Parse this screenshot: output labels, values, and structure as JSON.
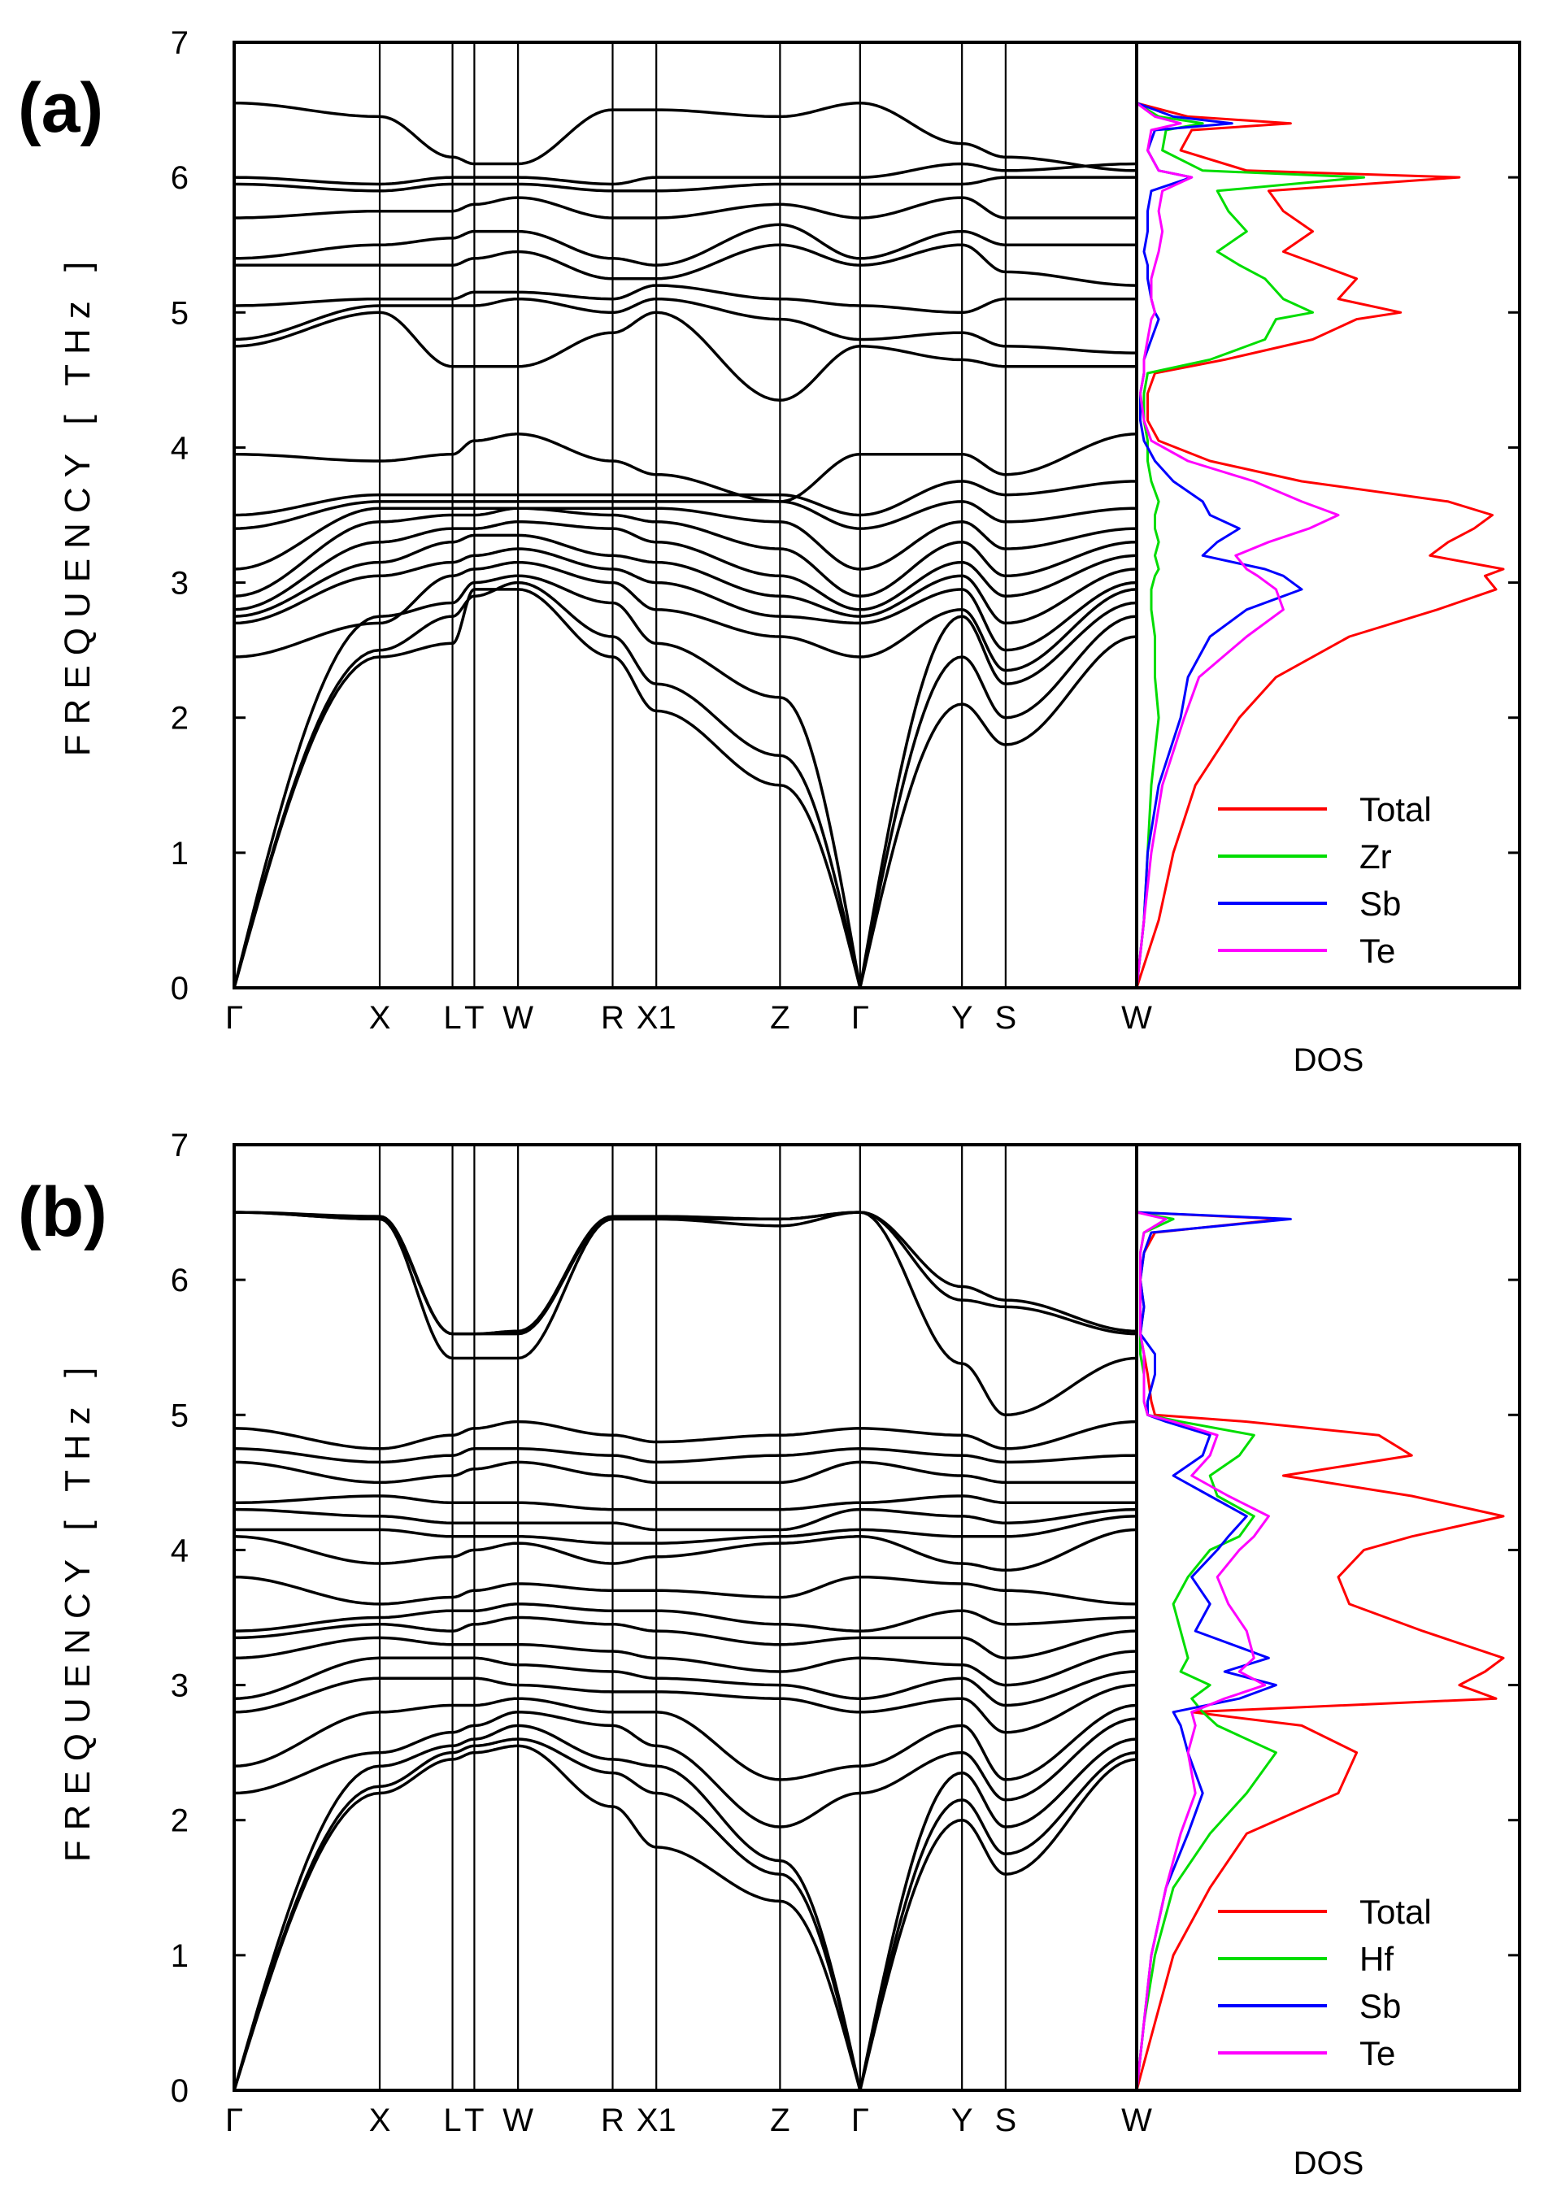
{
  "chart_data": [
    {
      "type": "line",
      "panel_label": "(a)",
      "ylabel": "FREQUENCY [ THz ]",
      "ylim": [
        0,
        7
      ],
      "yticks": [
        "0",
        "1",
        "2",
        "3",
        "4",
        "5",
        "6",
        "7"
      ],
      "dos_label": "DOS",
      "kpath_labels": [
        "Γ",
        "X",
        "L",
        "T",
        "W",
        "R",
        "X1",
        "Z",
        "Γ",
        "Y",
        "S",
        "W"
      ],
      "kpath_positions": [
        0,
        1,
        1.5,
        1.65,
        1.95,
        2.6,
        2.9,
        3.75,
        4.3,
        5.0,
        5.3,
        6.2
      ],
      "band_frequencies_at_kpoints": [
        [
          0,
          2.45,
          2.55,
          2.95,
          2.95,
          2.45,
          2.05,
          1.5,
          0,
          2.1,
          1.8,
          2.6
        ],
        [
          0,
          2.5,
          2.75,
          2.9,
          3.0,
          2.6,
          2.25,
          1.72,
          0,
          2.45,
          2.0,
          2.75
        ],
        [
          0,
          2.75,
          2.85,
          3.0,
          3.05,
          2.85,
          2.55,
          2.15,
          0,
          2.75,
          2.25,
          2.85
        ],
        [
          2.45,
          2.7,
          3.05,
          3.1,
          3.15,
          3.0,
          2.8,
          2.6,
          2.45,
          2.8,
          2.35,
          2.95
        ],
        [
          2.7,
          3.05,
          3.15,
          3.2,
          3.25,
          3.1,
          3.0,
          2.75,
          2.7,
          2.95,
          2.5,
          3.0
        ],
        [
          2.75,
          3.15,
          3.3,
          3.35,
          3.35,
          3.2,
          3.15,
          2.9,
          2.75,
          3.05,
          2.7,
          3.1
        ],
        [
          2.8,
          3.3,
          3.4,
          3.4,
          3.45,
          3.4,
          3.3,
          3.05,
          2.8,
          3.15,
          2.9,
          3.2
        ],
        [
          2.9,
          3.45,
          3.5,
          3.5,
          3.55,
          3.5,
          3.45,
          3.25,
          2.9,
          3.3,
          3.05,
          3.3
        ],
        [
          3.1,
          3.55,
          3.55,
          3.55,
          3.55,
          3.55,
          3.55,
          3.45,
          3.1,
          3.45,
          3.25,
          3.4
        ],
        [
          3.4,
          3.6,
          3.6,
          3.6,
          3.6,
          3.6,
          3.6,
          3.6,
          3.4,
          3.6,
          3.45,
          3.55
        ],
        [
          3.5,
          3.65,
          3.65,
          3.65,
          3.65,
          3.65,
          3.65,
          3.65,
          3.5,
          3.75,
          3.65,
          3.75
        ],
        [
          3.95,
          3.9,
          3.95,
          4.05,
          4.1,
          3.9,
          3.8,
          3.6,
          3.95,
          3.95,
          3.8,
          4.1
        ],
        [
          4.75,
          5.0,
          4.6,
          4.6,
          4.6,
          4.85,
          5.0,
          4.35,
          4.75,
          4.65,
          4.6,
          4.6
        ],
        [
          4.8,
          5.05,
          5.05,
          5.05,
          5.1,
          5.0,
          5.1,
          4.95,
          4.8,
          4.85,
          4.75,
          4.7
        ],
        [
          5.05,
          5.1,
          5.1,
          5.15,
          5.15,
          5.1,
          5.2,
          5.1,
          5.05,
          5.0,
          5.1,
          5.1
        ],
        [
          5.35,
          5.35,
          5.35,
          5.4,
          5.45,
          5.25,
          5.25,
          5.5,
          5.35,
          5.5,
          5.3,
          5.2
        ],
        [
          5.4,
          5.5,
          5.55,
          5.6,
          5.6,
          5.4,
          5.35,
          5.65,
          5.4,
          5.6,
          5.5,
          5.5
        ],
        [
          5.7,
          5.75,
          5.75,
          5.8,
          5.85,
          5.7,
          5.7,
          5.8,
          5.7,
          5.85,
          5.7,
          5.7
        ],
        [
          5.95,
          5.9,
          5.95,
          5.95,
          5.95,
          5.9,
          5.9,
          5.95,
          5.95,
          5.95,
          6.0,
          6.0
        ],
        [
          6.0,
          5.95,
          6.0,
          6.0,
          6.0,
          5.95,
          6.0,
          6.0,
          6.0,
          6.1,
          6.05,
          6.1
        ],
        [
          6.55,
          6.45,
          6.15,
          6.1,
          6.1,
          6.5,
          6.5,
          6.45,
          6.55,
          6.25,
          6.15,
          6.05
        ]
      ],
      "dos": {
        "x_range": [
          0,
          1
        ],
        "freq": [
          0,
          0.5,
          1.0,
          1.5,
          2.0,
          2.3,
          2.6,
          2.8,
          2.95,
          3.05,
          3.1,
          3.2,
          3.3,
          3.4,
          3.5,
          3.6,
          3.75,
          3.9,
          4.05,
          4.2,
          4.4,
          4.55,
          4.65,
          4.8,
          4.95,
          5.0,
          5.1,
          5.25,
          5.35,
          5.45,
          5.6,
          5.75,
          5.9,
          6.0,
          6.05,
          6.2,
          6.35,
          6.4,
          6.45,
          6.55
        ],
        "series": [
          {
            "name": "Total",
            "color": "#ff0000",
            "values": [
              0,
              0.06,
              0.1,
              0.16,
              0.28,
              0.38,
              0.58,
              0.82,
              0.98,
              0.95,
              1.0,
              0.8,
              0.85,
              0.92,
              0.97,
              0.85,
              0.45,
              0.2,
              0.06,
              0.03,
              0.03,
              0.05,
              0.24,
              0.48,
              0.6,
              0.72,
              0.55,
              0.6,
              0.5,
              0.4,
              0.48,
              0.4,
              0.36,
              0.88,
              0.3,
              0.12,
              0.15,
              0.42,
              0.14,
              0
            ]
          },
          {
            "name": "Zr",
            "color": "#00dd00",
            "values": [
              0,
              0.02,
              0.03,
              0.04,
              0.06,
              0.05,
              0.05,
              0.04,
              0.04,
              0.05,
              0.06,
              0.05,
              0.06,
              0.05,
              0.05,
              0.06,
              0.04,
              0.03,
              0.03,
              0.02,
              0.02,
              0.03,
              0.2,
              0.35,
              0.38,
              0.48,
              0.4,
              0.35,
              0.28,
              0.22,
              0.3,
              0.25,
              0.22,
              0.62,
              0.18,
              0.07,
              0.08,
              0.18,
              0.06,
              0
            ]
          },
          {
            "name": "Sb",
            "color": "#0000ff",
            "values": [
              0,
              0.02,
              0.03,
              0.06,
              0.12,
              0.14,
              0.2,
              0.3,
              0.45,
              0.4,
              0.35,
              0.18,
              0.22,
              0.28,
              0.2,
              0.18,
              0.1,
              0.05,
              0.02,
              0.01,
              0.01,
              0.02,
              0.02,
              0.04,
              0.06,
              0.05,
              0.04,
              0.03,
              0.03,
              0.02,
              0.03,
              0.03,
              0.04,
              0.15,
              0.06,
              0.03,
              0.05,
              0.26,
              0.1,
              0
            ]
          },
          {
            "name": "Te",
            "color": "#ff00ff",
            "values": [
              0,
              0.02,
              0.04,
              0.07,
              0.13,
              0.17,
              0.3,
              0.4,
              0.38,
              0.33,
              0.3,
              0.27,
              0.36,
              0.47,
              0.55,
              0.45,
              0.32,
              0.14,
              0.04,
              0.02,
              0.01,
              0.02,
              0.02,
              0.03,
              0.04,
              0.05,
              0.04,
              0.04,
              0.05,
              0.06,
              0.07,
              0.06,
              0.07,
              0.15,
              0.06,
              0.03,
              0.04,
              0.12,
              0.05,
              0
            ]
          }
        ]
      },
      "legend": [
        "Total",
        "Zr",
        "Sb",
        "Te"
      ]
    },
    {
      "type": "line",
      "panel_label": "(b)",
      "ylabel": "FREQUENCY [ THz ]",
      "ylim": [
        0,
        7
      ],
      "yticks": [
        "0",
        "1",
        "2",
        "3",
        "4",
        "5",
        "6",
        "7"
      ],
      "dos_label": "DOS",
      "kpath_labels": [
        "Γ",
        "X",
        "L",
        "T",
        "W",
        "R",
        "X1",
        "Z",
        "Γ",
        "Y",
        "S",
        "W"
      ],
      "kpath_positions": [
        0,
        1,
        1.5,
        1.65,
        1.95,
        2.6,
        2.9,
        3.75,
        4.3,
        5.0,
        5.3,
        6.2
      ],
      "band_frequencies_at_kpoints": [
        [
          0,
          2.2,
          2.45,
          2.5,
          2.55,
          2.1,
          1.8,
          1.4,
          0,
          2.0,
          1.6,
          2.45
        ],
        [
          0,
          2.25,
          2.5,
          2.55,
          2.6,
          2.35,
          2.2,
          1.6,
          0,
          2.15,
          1.75,
          2.5
        ],
        [
          0,
          2.4,
          2.55,
          2.6,
          2.7,
          2.45,
          2.4,
          1.7,
          0,
          2.35,
          1.95,
          2.6
        ],
        [
          2.2,
          2.5,
          2.65,
          2.7,
          2.8,
          2.7,
          2.55,
          1.95,
          2.2,
          2.5,
          2.15,
          2.75
        ],
        [
          2.4,
          2.8,
          2.85,
          2.85,
          2.9,
          2.8,
          2.8,
          2.3,
          2.4,
          2.7,
          2.3,
          2.85
        ],
        [
          2.8,
          3.05,
          3.05,
          3.05,
          3.0,
          2.95,
          2.95,
          2.9,
          2.8,
          2.9,
          2.65,
          3.0
        ],
        [
          2.9,
          3.2,
          3.2,
          3.2,
          3.15,
          3.1,
          3.05,
          3.0,
          2.9,
          3.05,
          2.85,
          3.1
        ],
        [
          3.2,
          3.35,
          3.3,
          3.3,
          3.3,
          3.25,
          3.2,
          3.1,
          3.2,
          3.15,
          3.0,
          3.25
        ],
        [
          3.35,
          3.45,
          3.4,
          3.45,
          3.5,
          3.45,
          3.4,
          3.3,
          3.35,
          3.35,
          3.2,
          3.4
        ],
        [
          3.4,
          3.5,
          3.55,
          3.55,
          3.6,
          3.55,
          3.55,
          3.45,
          3.4,
          3.55,
          3.45,
          3.5
        ],
        [
          3.8,
          3.6,
          3.65,
          3.7,
          3.75,
          3.7,
          3.7,
          3.65,
          3.8,
          3.75,
          3.7,
          3.6
        ],
        [
          4.1,
          3.9,
          3.95,
          4.0,
          4.05,
          3.9,
          3.95,
          4.05,
          4.1,
          3.9,
          3.85,
          4.15
        ],
        [
          4.15,
          4.15,
          4.1,
          4.1,
          4.1,
          4.05,
          4.05,
          4.1,
          4.15,
          4.1,
          4.1,
          4.25
        ],
        [
          4.3,
          4.25,
          4.2,
          4.2,
          4.2,
          4.2,
          4.15,
          4.15,
          4.3,
          4.25,
          4.2,
          4.3
        ],
        [
          4.35,
          4.4,
          4.35,
          4.35,
          4.35,
          4.3,
          4.3,
          4.3,
          4.35,
          4.4,
          4.35,
          4.35
        ],
        [
          4.65,
          4.5,
          4.55,
          4.6,
          4.65,
          4.55,
          4.5,
          4.5,
          4.65,
          4.55,
          4.5,
          4.5
        ],
        [
          4.75,
          4.65,
          4.7,
          4.75,
          4.75,
          4.7,
          4.65,
          4.7,
          4.75,
          4.7,
          4.65,
          4.7
        ],
        [
          4.9,
          4.75,
          4.85,
          4.9,
          4.95,
          4.85,
          4.8,
          4.85,
          4.9,
          4.85,
          4.75,
          4.95
        ],
        [
          6.5,
          6.45,
          5.42,
          5.42,
          5.42,
          6.45,
          6.45,
          6.4,
          6.5,
          5.85,
          5.8,
          5.6
        ],
        [
          6.5,
          6.45,
          5.6,
          5.6,
          5.6,
          6.45,
          6.45,
          6.45,
          6.5,
          5.95,
          5.85,
          5.62
        ],
        [
          6.5,
          6.47,
          5.6,
          5.6,
          5.62,
          6.47,
          6.47,
          6.45,
          6.5,
          5.38,
          5.0,
          5.42
        ]
      ],
      "dos": {
        "x_range": [
          0,
          1
        ],
        "freq": [
          0,
          0.5,
          1.0,
          1.5,
          1.9,
          2.2,
          2.5,
          2.7,
          2.8,
          2.9,
          3.0,
          3.1,
          3.2,
          3.4,
          3.6,
          3.8,
          4.0,
          4.1,
          4.25,
          4.4,
          4.55,
          4.7,
          4.85,
          4.95,
          5.0,
          5.1,
          5.3,
          5.45,
          5.6,
          5.8,
          6.0,
          6.2,
          6.35,
          6.45,
          6.5
        ],
        "series": [
          {
            "name": "Total",
            "color": "#ff0000",
            "values": [
              0,
              0.05,
              0.1,
              0.2,
              0.3,
              0.55,
              0.6,
              0.45,
              0.15,
              0.98,
              0.88,
              0.95,
              1.0,
              0.78,
              0.58,
              0.55,
              0.62,
              0.75,
              1.0,
              0.75,
              0.4,
              0.75,
              0.66,
              0.3,
              0.05,
              0.04,
              0.03,
              0.02,
              0.01,
              0.02,
              0.01,
              0.02,
              0.05,
              0.4,
              0.0
            ]
          },
          {
            "name": "Hf",
            "color": "#00dd00",
            "values": [
              0,
              0.02,
              0.05,
              0.1,
              0.2,
              0.3,
              0.38,
              0.22,
              0.18,
              0.15,
              0.2,
              0.12,
              0.14,
              0.12,
              0.1,
              0.14,
              0.2,
              0.28,
              0.32,
              0.22,
              0.2,
              0.28,
              0.32,
              0.12,
              0.03,
              0.02,
              0.02,
              0.01,
              0.01,
              0.01,
              0.01,
              0.01,
              0.02,
              0.1,
              0
            ]
          },
          {
            "name": "Sb",
            "color": "#0000ff",
            "values": [
              0,
              0.02,
              0.04,
              0.08,
              0.14,
              0.18,
              0.14,
              0.12,
              0.1,
              0.28,
              0.38,
              0.24,
              0.36,
              0.16,
              0.2,
              0.15,
              0.22,
              0.25,
              0.3,
              0.2,
              0.1,
              0.18,
              0.2,
              0.08,
              0.03,
              0.03,
              0.05,
              0.05,
              0.01,
              0.02,
              0.01,
              0.02,
              0.04,
              0.42,
              0
            ]
          },
          {
            "name": "Te",
            "color": "#ff00ff",
            "values": [
              0,
              0.02,
              0.04,
              0.08,
              0.12,
              0.16,
              0.14,
              0.16,
              0.15,
              0.24,
              0.35,
              0.28,
              0.32,
              0.3,
              0.25,
              0.22,
              0.28,
              0.32,
              0.36,
              0.25,
              0.15,
              0.2,
              0.22,
              0.1,
              0.03,
              0.02,
              0.02,
              0.02,
              0.01,
              0.01,
              0.01,
              0.01,
              0.02,
              0.08,
              0
            ]
          }
        ]
      },
      "legend": [
        "Total",
        "Hf",
        "Sb",
        "Te"
      ]
    }
  ]
}
